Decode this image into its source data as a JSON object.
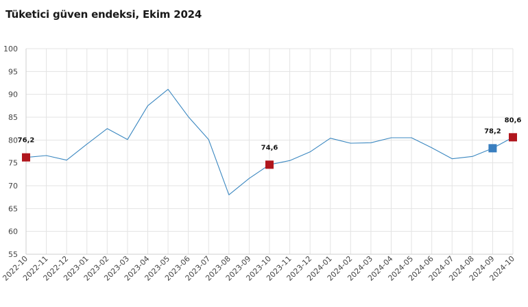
{
  "chart_data": {
    "type": "line",
    "title": "Tüketici güven endeksi, Ekim 2024",
    "xlabel": "",
    "ylabel": "",
    "ylim": [
      55,
      100
    ],
    "yticks": [
      55,
      60,
      65,
      70,
      75,
      80,
      85,
      90,
      95,
      100
    ],
    "grid": true,
    "categories": [
      "2022-10",
      "2022-11",
      "2022-12",
      "2023-01",
      "2023-02",
      "2023-03",
      "2023-04",
      "2023-05",
      "2023-06",
      "2023-07",
      "2023-08",
      "2023-09",
      "2023-10",
      "2023-11",
      "2023-12",
      "2024-01",
      "2024-02",
      "2024-03",
      "2024-04",
      "2024-05",
      "2024-06",
      "2024-07",
      "2024-08",
      "2024-09",
      "2024-10"
    ],
    "series": [
      {
        "values": [
          76.2,
          76.6,
          75.6,
          79.1,
          82.5,
          80.1,
          87.5,
          91.1,
          85.1,
          80.1,
          68.0,
          71.6,
          74.6,
          75.5,
          77.4,
          80.4,
          79.3,
          79.4,
          80.5,
          80.5,
          78.3,
          75.9,
          76.4,
          78.2,
          80.6
        ],
        "color": "#3a87c0"
      }
    ],
    "highlights": [
      {
        "category": "2022-10",
        "value": 76.2,
        "label": "76,2",
        "color": "#b0161d"
      },
      {
        "category": "2023-10",
        "value": 74.6,
        "label": "74,6",
        "color": "#b0161d"
      },
      {
        "category": "2024-09",
        "value": 78.2,
        "label": "78,2",
        "color": "#3a7fc0"
      },
      {
        "category": "2024-10",
        "value": 80.6,
        "label": "80,6",
        "color": "#b0161d"
      }
    ]
  }
}
